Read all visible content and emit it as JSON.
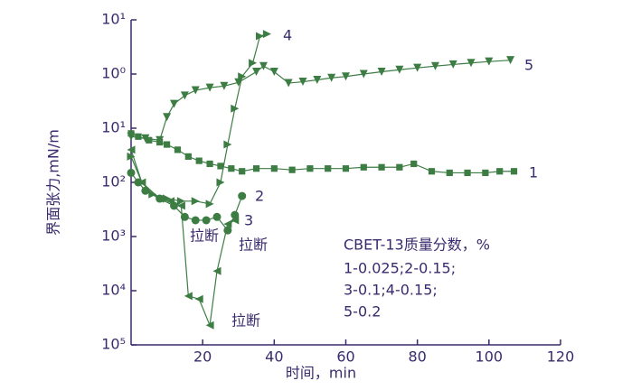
{
  "chart_data": {
    "type": "line",
    "xlabel": "时间，min",
    "ylabel": "界面张力,mN/m",
    "xlim": [
      0,
      120
    ],
    "xticks": [
      20,
      40,
      60,
      80,
      100,
      120
    ],
    "ylim": [
      1e-05,
      10
    ],
    "log_y": true,
    "yticks": [
      {
        "value": 10,
        "label": "10¹"
      },
      {
        "value": 1,
        "label": "10⁰"
      },
      {
        "value": 0.1,
        "label": "10¹"
      },
      {
        "value": 0.01,
        "label": "10²"
      },
      {
        "value": 0.001,
        "label": "10³"
      },
      {
        "value": 0.0001,
        "label": "10⁴"
      },
      {
        "value": 1e-05,
        "label": "10⁵"
      }
    ],
    "series": [
      {
        "name": "1",
        "color": "#3d7d44",
        "marker": "square",
        "x": [
          0,
          2,
          5,
          8,
          10,
          13,
          16,
          19,
          22,
          25,
          28,
          31,
          35,
          40,
          45,
          50,
          55,
          60,
          65,
          70,
          75,
          79,
          84,
          89,
          94,
          99,
          103,
          107
        ],
        "values": [
          0.08,
          0.07,
          0.06,
          0.055,
          0.05,
          0.04,
          0.03,
          0.025,
          0.022,
          0.02,
          0.018,
          0.016,
          0.018,
          0.018,
          0.017,
          0.018,
          0.018,
          0.018,
          0.019,
          0.019,
          0.019,
          0.022,
          0.016,
          0.015,
          0.015,
          0.015,
          0.016,
          0.016
        ]
      },
      {
        "name": "2",
        "color": "#3d7d44",
        "marker": "circle",
        "x": [
          0,
          2,
          4,
          8,
          12,
          15,
          18,
          21,
          24,
          27,
          29,
          31
        ],
        "values": [
          0.015,
          0.01,
          0.007,
          0.005,
          0.0037,
          0.0023,
          0.002,
          0.002,
          0.0023,
          0.0013,
          0.0025,
          0.0056
        ]
      },
      {
        "name": "3",
        "color": "#3d7d44",
        "marker": "triangle-left",
        "x": [
          0,
          3,
          8,
          11,
          14,
          16,
          19,
          22,
          24,
          27,
          29
        ],
        "values": [
          0.04,
          0.01,
          0.005,
          0.0045,
          0.0037,
          8e-05,
          7e-05,
          2.3e-05,
          0.00023,
          0.0017,
          0.002
        ]
      },
      {
        "name": "4",
        "color": "#3d7d44",
        "marker": "triangle-right",
        "x": [
          0,
          3,
          6,
          10,
          14,
          18,
          22,
          25,
          27,
          29,
          31,
          34,
          36,
          38
        ],
        "values": [
          0.03,
          0.01,
          0.006,
          0.005,
          0.0045,
          0.0045,
          0.004,
          0.01,
          0.05,
          0.23,
          0.9,
          1.6,
          5,
          5.5
        ]
      },
      {
        "name": "5",
        "color": "#3d7d44",
        "marker": "triangle-down",
        "x": [
          0,
          4,
          8,
          10,
          12,
          15,
          18,
          22,
          26,
          30,
          35,
          37,
          40,
          44,
          48,
          52,
          56,
          60,
          65,
          70,
          75,
          80,
          85,
          90,
          95,
          100,
          106
        ],
        "values": [
          0.07,
          0.065,
          0.06,
          0.16,
          0.28,
          0.4,
          0.5,
          0.56,
          0.6,
          0.7,
          1.1,
          1.4,
          1.1,
          0.68,
          0.72,
          0.78,
          0.85,
          0.9,
          1,
          1.1,
          1.2,
          1.3,
          1.4,
          1.5,
          1.6,
          1.7,
          1.8
        ]
      }
    ],
    "annotations": [
      "拉断",
      "拉断",
      "拉断"
    ],
    "legend_text": [
      "CBET-13质量分数，%",
      "1-0.025;2-0.15;",
      "3-0.1;4-0.15;",
      "5-0.2"
    ]
  }
}
